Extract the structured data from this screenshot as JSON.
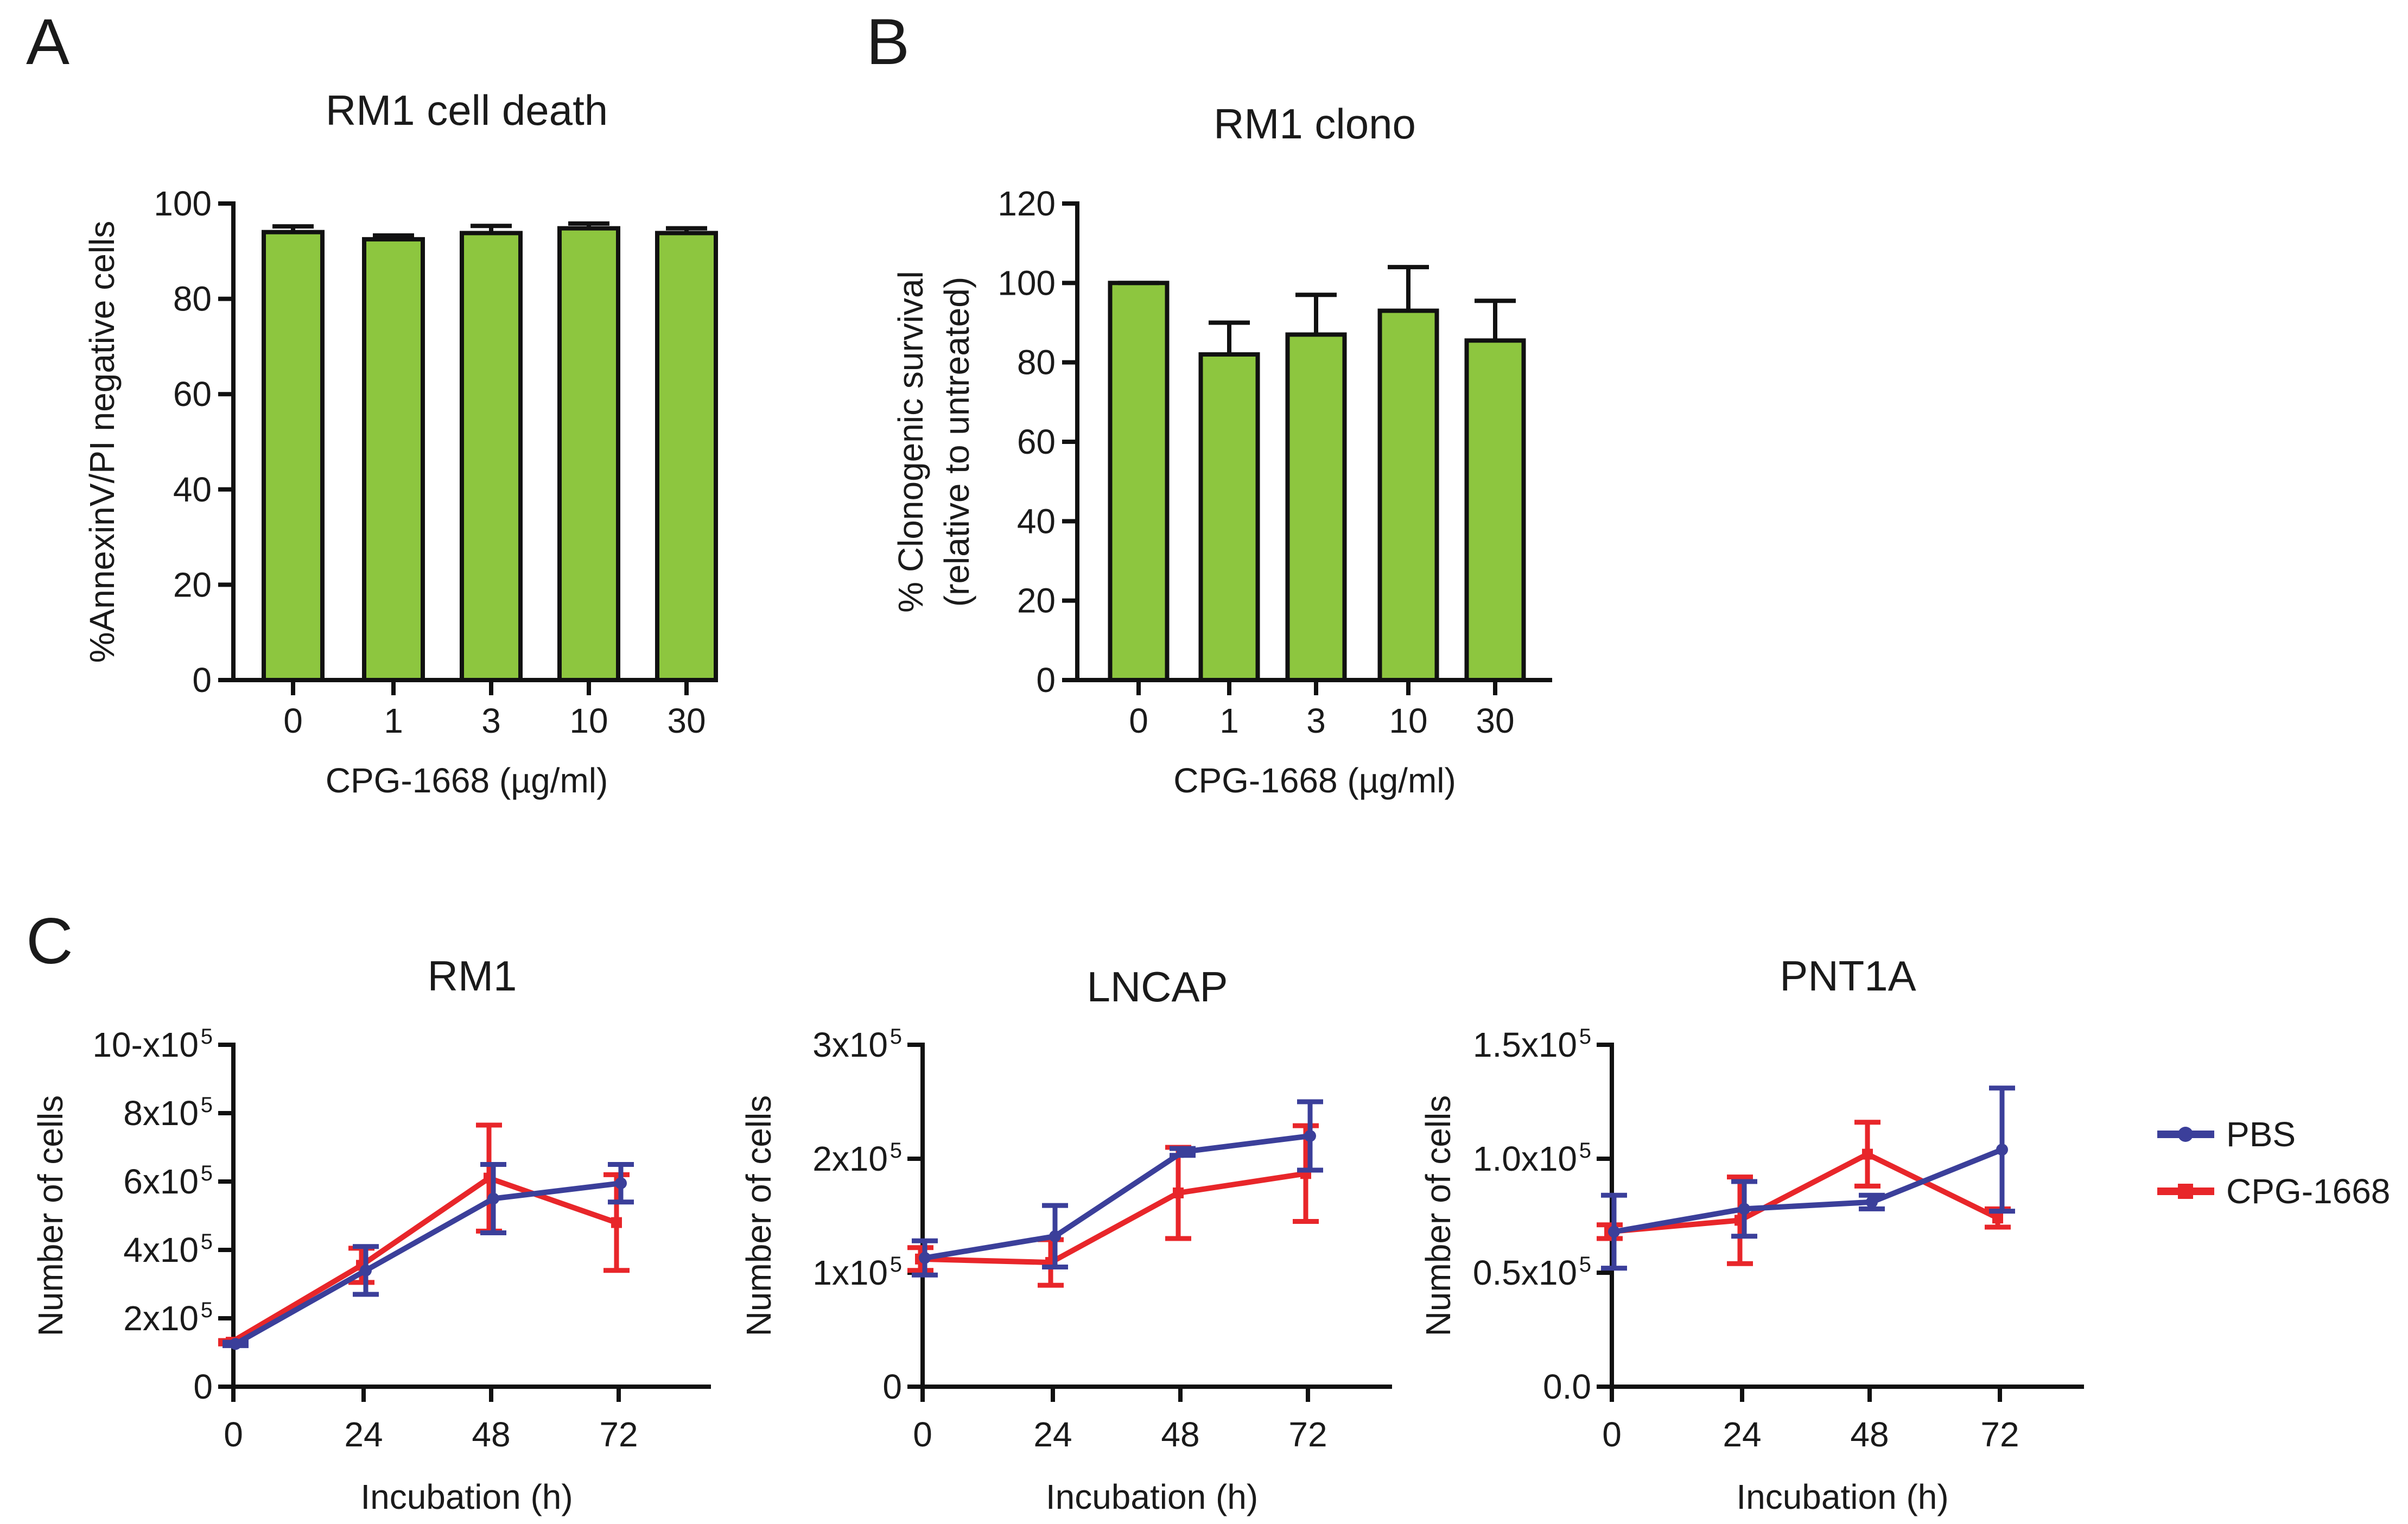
{
  "panel_labels": {
    "a": "A",
    "b": "B",
    "c": "C"
  },
  "colors": {
    "bar": "#8dc63f",
    "axis": "#111111",
    "pbs": "#3b3f9a",
    "cpg": "#e8262a"
  },
  "legend": {
    "pbs": "PBS",
    "cpg": "CPG-1668"
  },
  "chart_data": [
    {
      "id": "A",
      "type": "bar",
      "title": "RM1 cell death",
      "xlabel": "CPG-1668 (µg/ml)",
      "ylabel": "%AnnexinV/PI negative cells",
      "categories": [
        "0",
        "1",
        "3",
        "10",
        "30"
      ],
      "values": [
        94,
        92.5,
        93.8,
        94.8,
        93.8
      ],
      "errors": [
        1.2,
        0.8,
        1.5,
        1.0,
        1.0
      ],
      "ylim": [
        0,
        100
      ],
      "yticks": [
        "0",
        "20",
        "40",
        "60",
        "80",
        "100"
      ]
    },
    {
      "id": "B",
      "type": "bar",
      "title": "RM1 clono",
      "xlabel": "CPG-1668 (µg/ml)",
      "ylabel_line1": "% Clonogenic survival",
      "ylabel_line2": "(relative to untreated)",
      "categories": [
        "0",
        "1",
        "3",
        "10",
        "30"
      ],
      "values": [
        100,
        82,
        87,
        93,
        85.5
      ],
      "errors": [
        0,
        8,
        10,
        11,
        10
      ],
      "ylim": [
        0,
        120
      ],
      "yticks": [
        "0",
        "20",
        "40",
        "60",
        "80",
        "100",
        "120"
      ]
    },
    {
      "id": "C1",
      "type": "line",
      "title": "RM1",
      "xlabel": "Incubation (h)",
      "ylabel": "Number of cells",
      "x": [
        0,
        24,
        48,
        72
      ],
      "xticks": [
        "0",
        "24",
        "48",
        "72"
      ],
      "ylim": [
        0,
        1000000
      ],
      "ytick_values": [
        0,
        200000,
        400000,
        600000,
        800000,
        1000000
      ],
      "ytick_labels": [
        {
          "base": "0",
          "exp": ""
        },
        {
          "base": "2x10",
          "exp": "5"
        },
        {
          "base": "4x10",
          "exp": "5"
        },
        {
          "base": "6x10",
          "exp": "5"
        },
        {
          "base": "8x10",
          "exp": "5"
        },
        {
          "base": "10-x10",
          "exp": "5"
        }
      ],
      "series": [
        {
          "name": "CPG-1668",
          "values": [
            130000,
            355000,
            610000,
            480000
          ],
          "errors": [
            5000,
            50000,
            155000,
            140000
          ]
        },
        {
          "name": "PBS",
          "values": [
            125000,
            340000,
            550000,
            595000
          ],
          "errors": [
            5000,
            70000,
            100000,
            55000
          ]
        }
      ]
    },
    {
      "id": "C2",
      "type": "line",
      "title": "LNCAP",
      "xlabel": "Incubation (h)",
      "ylabel": "Number of cells",
      "x": [
        0,
        24,
        48,
        72
      ],
      "xticks": [
        "0",
        "24",
        "48",
        "72"
      ],
      "ylim": [
        0,
        300000
      ],
      "ytick_values": [
        0,
        100000,
        200000,
        300000
      ],
      "ytick_labels": [
        {
          "base": "0",
          "exp": ""
        },
        {
          "base": "1x10",
          "exp": "5"
        },
        {
          "base": "2x10",
          "exp": "5"
        },
        {
          "base": "3x10",
          "exp": "5"
        }
      ],
      "series": [
        {
          "name": "CPG-1668",
          "values": [
            112000,
            109000,
            170000,
            187000
          ],
          "errors": [
            10000,
            20000,
            40000,
            42000
          ]
        },
        {
          "name": "PBS",
          "values": [
            113000,
            132000,
            206000,
            220000
          ],
          "errors": [
            15000,
            27000,
            3000,
            30000
          ]
        }
      ]
    },
    {
      "id": "C3",
      "type": "line",
      "title": "PNT1A",
      "xlabel": "Incubation (h)",
      "ylabel": "Number of cells",
      "x": [
        0,
        24,
        48,
        72
      ],
      "xticks": [
        "0",
        "24",
        "48",
        "72"
      ],
      "ylim": [
        0,
        150000
      ],
      "ytick_values": [
        0,
        50000,
        100000,
        150000
      ],
      "ytick_labels": [
        {
          "base": "0.0",
          "exp": ""
        },
        {
          "base": "0.5x10",
          "exp": "5"
        },
        {
          "base": "1.0x10",
          "exp": "5"
        },
        {
          "base": "1.5x10",
          "exp": "5"
        }
      ],
      "series": [
        {
          "name": "CPG-1668",
          "values": [
            68000,
            73000,
            102000,
            74000
          ],
          "errors": [
            3000,
            19000,
            14000,
            4000
          ]
        },
        {
          "name": "PBS",
          "values": [
            68000,
            78000,
            81000,
            104000
          ],
          "errors": [
            16000,
            12000,
            3000,
            27000
          ]
        }
      ]
    }
  ]
}
